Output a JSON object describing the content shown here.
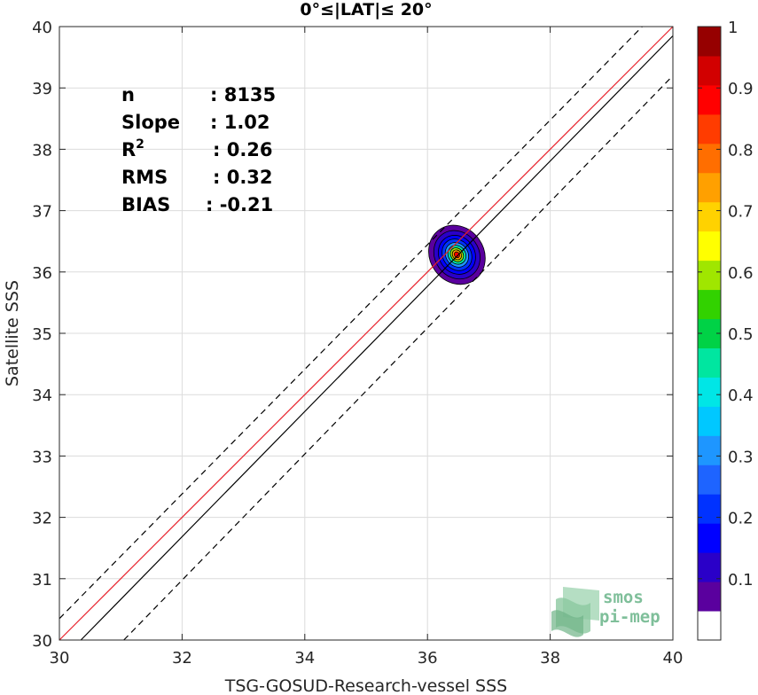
{
  "chart_data": {
    "type": "contour",
    "title": "0°≤|LAT|≤ 20°",
    "xlabel": "TSG-GOSUD-Research-vessel SSS",
    "ylabel": "Satellite SSS",
    "xlim": [
      30,
      40
    ],
    "ylim": [
      30,
      40
    ],
    "x_ticks": [
      "30",
      "32",
      "34",
      "36",
      "38",
      "40"
    ],
    "y_ticks": [
      "30",
      "31",
      "32",
      "33",
      "34",
      "35",
      "36",
      "37",
      "38",
      "39",
      "40"
    ],
    "grid": true,
    "stats": [
      {
        "label": "n",
        "value": ": 8135"
      },
      {
        "label": "Slope",
        "value": ": 1.02"
      },
      {
        "label": "R",
        "sup": "2",
        "value": ": 0.26"
      },
      {
        "label": "RMS",
        "value": ": 0.32"
      },
      {
        "label": "BIAS",
        "value": ": -0.21"
      }
    ],
    "lines": [
      {
        "name": "one-to-one",
        "color": "#e8202a",
        "dash": false,
        "points": [
          [
            30,
            30
          ],
          [
            40,
            40
          ]
        ]
      },
      {
        "name": "fit",
        "color": "#000000",
        "dash": false,
        "points": [
          [
            30.35,
            30
          ],
          [
            40,
            39.85
          ]
        ]
      },
      {
        "name": "upper-bound",
        "color": "#000000",
        "dash": true,
        "points": [
          [
            30,
            30.35
          ],
          [
            39.5,
            40
          ]
        ]
      },
      {
        "name": "lower-bound",
        "color": "#000000",
        "dash": true,
        "points": [
          [
            31.05,
            30
          ],
          [
            40,
            39.2
          ]
        ]
      }
    ],
    "density_center": [
      36.48,
      36.28
    ],
    "density_levels": [
      {
        "level": 0.05,
        "rx": 0.44,
        "ry": 0.5
      },
      {
        "level": 0.1,
        "rx": 0.36,
        "ry": 0.41
      },
      {
        "level": 0.15,
        "rx": 0.29,
        "ry": 0.33
      },
      {
        "level": 0.2,
        "rx": 0.23,
        "ry": 0.27
      },
      {
        "level": 0.3,
        "rx": 0.18,
        "ry": 0.21
      },
      {
        "level": 0.45,
        "rx": 0.14,
        "ry": 0.16
      },
      {
        "level": 0.6,
        "rx": 0.1,
        "ry": 0.12
      },
      {
        "level": 0.75,
        "rx": 0.07,
        "ry": 0.085
      },
      {
        "level": 0.9,
        "rx": 0.04,
        "ry": 0.05
      }
    ],
    "colorbar": {
      "min": 0,
      "max": 1,
      "ticks": [
        "0.1",
        "0.2",
        "0.3",
        "0.4",
        "0.5",
        "0.6",
        "0.7",
        "0.8",
        "0.9",
        "1"
      ],
      "colors": [
        "#ffffff",
        "#5a009e",
        "#2a00c8",
        "#0000ff",
        "#0032ff",
        "#1e64ff",
        "#1e96ff",
        "#00c8ff",
        "#00e6e6",
        "#00e6a0",
        "#00d246",
        "#32d200",
        "#a0e600",
        "#ffff00",
        "#ffd200",
        "#ffa000",
        "#ff6e00",
        "#ff3c00",
        "#ff0000",
        "#d20000",
        "#960000"
      ]
    },
    "logo": [
      "smos",
      "pi-mep"
    ]
  }
}
